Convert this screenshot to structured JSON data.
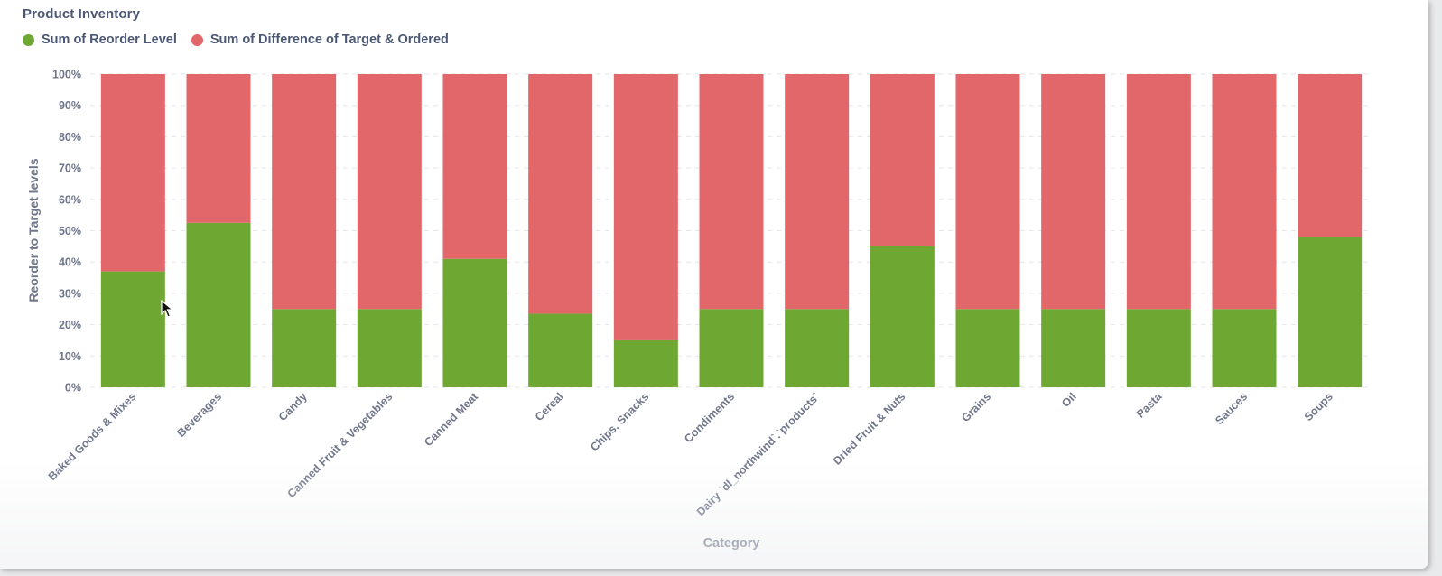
{
  "card": {
    "title": "Product Inventory"
  },
  "legend": {
    "items": [
      {
        "label": "Sum of Reorder Level",
        "color": "#6ea832"
      },
      {
        "label": "Sum of Difference of Target & Ordered",
        "color": "#e1676b"
      }
    ]
  },
  "chart_data": {
    "type": "bar",
    "stacked": true,
    "normalized": true,
    "categories": [
      "Baked Goods & Mixes",
      "Beverages",
      "Candy",
      "Canned Fruit & Vegetables",
      "Canned Meat",
      "Cereal",
      "Chips, Snacks",
      "Condiments",
      "Dairy `dl_northwind`.`products`",
      "Dried Fruit & Nuts",
      "Grains",
      "Oil",
      "Pasta",
      "Sauces",
      "Soups"
    ],
    "series": [
      {
        "name": "Sum of Reorder Level",
        "color": "#6ea832",
        "values": [
          37,
          52.5,
          25,
          25,
          41,
          23.5,
          15,
          25,
          25,
          45,
          25,
          25,
          25,
          25,
          48
        ]
      },
      {
        "name": "Sum of Difference of Target & Ordered",
        "color": "#e1676b",
        "values": [
          63,
          47.5,
          75,
          75,
          59,
          76.5,
          85,
          75,
          75,
          55,
          75,
          75,
          75,
          75,
          52
        ]
      }
    ],
    "xlabel": "Category",
    "ylabel": "Reorder to Target levels",
    "ylim": [
      0,
      100
    ],
    "yticks": [
      "0%",
      "10%",
      "20%",
      "30%",
      "40%",
      "50%",
      "60%",
      "70%",
      "80%",
      "90%",
      "100%"
    ],
    "grid": true,
    "legend_position": "top-left"
  }
}
